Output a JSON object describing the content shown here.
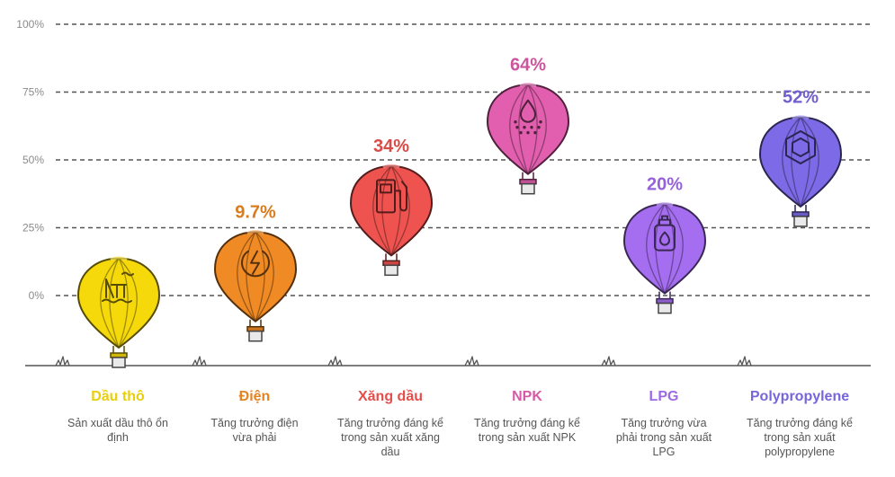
{
  "chart_data": {
    "type": "scatter",
    "title": "",
    "xlabel": "",
    "ylabel": "",
    "ylim": [
      0,
      100
    ],
    "y_ticks": [
      "0%",
      "25%",
      "50%",
      "75%",
      "100%"
    ],
    "grid": true,
    "categories": [
      {
        "name": "Dầu thô",
        "value": 0,
        "label": "",
        "description": [
          "Sản xuất dầu thô ổn",
          "định"
        ],
        "color": "#f5d90a",
        "icon": "oil-rig-icon"
      },
      {
        "name": "Điện",
        "value": 9.7,
        "label": "9.7%",
        "description": [
          "Tăng trưởng điện",
          "vừa phải"
        ],
        "color": "#f08a24",
        "icon": "power-icon"
      },
      {
        "name": "Xăng dầu",
        "value": 34,
        "label": "34%",
        "description": [
          "Tăng trưởng đáng kể",
          "trong sản xuất xăng",
          "dầu"
        ],
        "color": "#ef5350",
        "icon": "fuel-pump-icon"
      },
      {
        "name": "NPK",
        "value": 64,
        "label": "64%",
        "description": [
          "Tăng trưởng đáng kể",
          "trong sản xuất NPK"
        ],
        "color": "#e15fae",
        "icon": "fertilizer-icon"
      },
      {
        "name": "LPG",
        "value": 20,
        "label": "20%",
        "description": [
          "Tăng trưởng vừa",
          "phải trong sản xuất",
          "LPG"
        ],
        "color": "#a56ef0",
        "icon": "gas-cylinder-icon"
      },
      {
        "name": "Polypropylene",
        "value": 52,
        "label": "52%",
        "description": [
          "Tăng trưởng đáng kể",
          "trong sản xuất",
          "polypropylene"
        ],
        "color": "#7c6ae6",
        "icon": "polymer-icon"
      }
    ]
  }
}
